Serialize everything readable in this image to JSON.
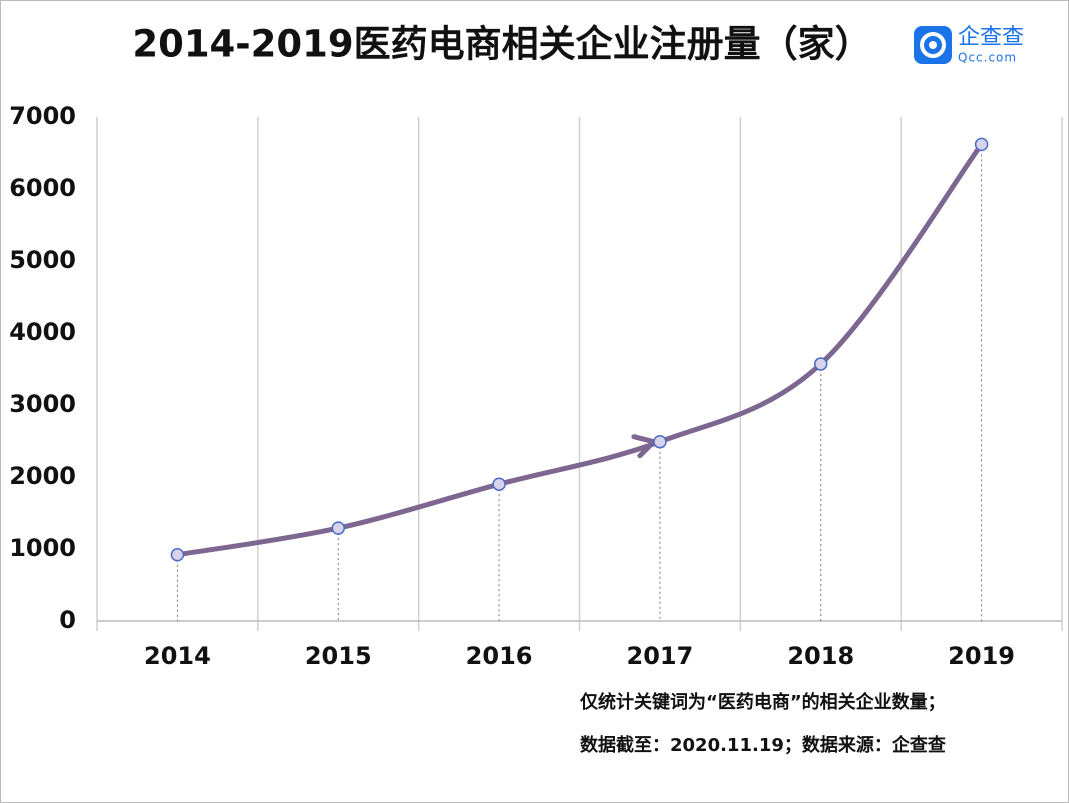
{
  "chart_data": {
    "type": "line",
    "title": "2014-2019医药电商相关企业注册量（家）",
    "logo": {
      "name": "企查查",
      "url": "Qcc.com"
    },
    "categories": [
      "2014",
      "2015",
      "2016",
      "2017",
      "2018",
      "2019"
    ],
    "series": [
      {
        "name": "注册量",
        "color": "#7d6690",
        "values": [
          920,
          1290,
          1900,
          2490,
          3570,
          6620
        ]
      }
    ],
    "ylim": [
      0,
      7000
    ],
    "yticks": [
      0,
      1000,
      2000,
      3000,
      4000,
      5000,
      6000,
      7000
    ],
    "notes": [
      "仅统计关键词为“医药电商”的相关企业数量；",
      "数据截至：2020.11.19；数据来源：企查查"
    ]
  }
}
